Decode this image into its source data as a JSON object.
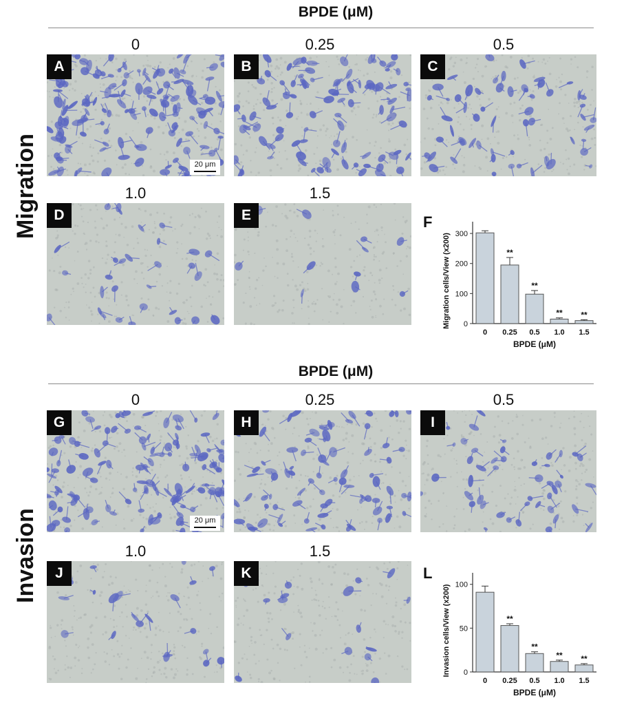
{
  "migration": {
    "header": "BPDE (μM)",
    "section_label": "Migration",
    "panels": [
      {
        "letter": "A",
        "conc": "0",
        "density": 1.0
      },
      {
        "letter": "B",
        "conc": "0.25",
        "density": 0.65
      },
      {
        "letter": "C",
        "conc": "0.5",
        "density": 0.38
      },
      {
        "letter": "D",
        "conc": "1.0",
        "density": 0.2
      },
      {
        "letter": "E",
        "conc": "1.5",
        "density": 0.05
      }
    ],
    "scale_bar": "20 μm",
    "chart_letter": "F"
  },
  "invasion": {
    "header": "BPDE (μM)",
    "section_label": "Invasion",
    "panels": [
      {
        "letter": "G",
        "conc": "0",
        "density": 0.85
      },
      {
        "letter": "H",
        "conc": "0.25",
        "density": 0.55
      },
      {
        "letter": "I",
        "conc": "0.5",
        "density": 0.3
      },
      {
        "letter": "J",
        "conc": "1.0",
        "density": 0.12
      },
      {
        "letter": "K",
        "conc": "1.5",
        "density": 0.1
      }
    ],
    "scale_bar": "20 μm",
    "chart_letter": "L"
  },
  "colors": {
    "bar_fill": "#c9d3dc",
    "stain": "#5a66c2",
    "background_field": "#c7cdc8"
  },
  "chart_data": [
    {
      "type": "bar",
      "categories": [
        "0",
        "0.25",
        "0.5",
        "1.0",
        "1.5"
      ],
      "values": [
        302,
        195,
        98,
        15,
        10
      ],
      "errors": [
        7,
        25,
        12,
        4,
        3
      ],
      "significance": [
        "",
        "**",
        "**",
        "**",
        "**"
      ],
      "xlabel": "BPDE (μM)",
      "ylabel": "Migration cells/View (x200)",
      "ylim": [
        0,
        330
      ],
      "yticks": [
        0,
        100,
        200,
        300
      ]
    },
    {
      "type": "bar",
      "categories": [
        "0",
        "0.25",
        "0.5",
        "1.0",
        "1.5"
      ],
      "values": [
        91,
        53,
        21,
        12,
        8
      ],
      "errors": [
        7,
        2,
        2,
        1.5,
        1.5
      ],
      "significance": [
        "",
        "**",
        "**",
        "**",
        "**"
      ],
      "xlabel": "BPDE (μM)",
      "ylabel": "Invasion cells/View (x200)",
      "ylim": [
        0,
        110
      ],
      "yticks": [
        0,
        50,
        100
      ]
    }
  ]
}
